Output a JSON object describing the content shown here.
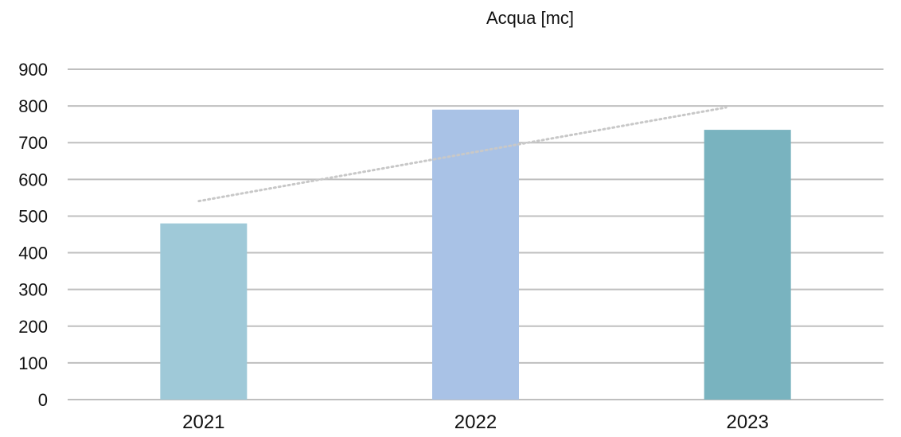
{
  "chart_data": {
    "type": "bar",
    "title": "Acqua  [mc]",
    "categories": [
      "2021",
      "2022",
      "2023"
    ],
    "values": [
      480,
      790,
      735
    ],
    "bar_colors": [
      "#9FC9D8",
      "#A9C2E6",
      "#79B3BF"
    ],
    "ylim": [
      0,
      900
    ],
    "yticks": [
      0,
      100,
      200,
      300,
      400,
      500,
      600,
      700,
      800,
      900
    ],
    "grid": true,
    "trendline": {
      "type": "linear",
      "style": "dotted",
      "color": "#C8C8C8"
    },
    "axis": {
      "grid_color": "#BFBFBF",
      "text_color": "#111111"
    }
  }
}
